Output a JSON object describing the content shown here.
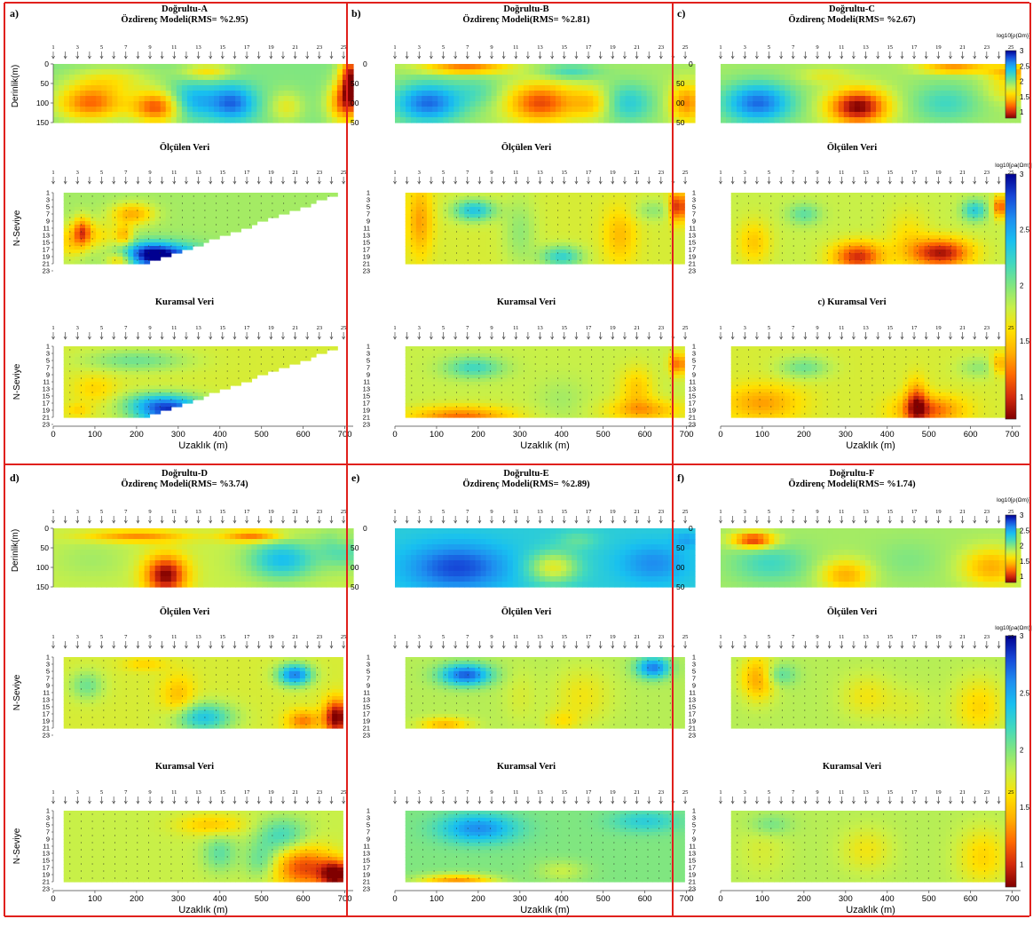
{
  "figure": {
    "frame_color": "#e0201c",
    "x_axis_label": "Uzaklık (m)",
    "x_ticks": [
      0,
      100,
      200,
      300,
      400,
      500,
      600,
      700
    ],
    "electrode_labels": [
      "1",
      "3",
      "5",
      "7",
      "9",
      "11",
      "13",
      "15",
      "17",
      "19",
      "21",
      "23",
      "25"
    ],
    "depth_axis_label": "Derinlik(m)",
    "depth_ticks": [
      0,
      50,
      100,
      150
    ],
    "n_axis_label": "N-Seviye",
    "n_ticks": [
      1,
      3,
      5,
      7,
      9,
      11,
      13,
      15,
      17,
      19,
      21,
      23
    ],
    "row_titles": {
      "model_prefix": "Özdirenç Modeli(RMS= ",
      "measured": "Ölçülen Veri",
      "calculated": "Kuramsal Veri"
    },
    "colorbar_model": {
      "label": "log10[ρ(Ωm)]",
      "ticks": [
        "3",
        "2.5",
        "2",
        "1.5",
        "1"
      ]
    },
    "colorbar_data": {
      "label": "log10[ρa(Ωm)]",
      "ticks": [
        "3",
        "2.5",
        "2",
        "1.5",
        "1"
      ]
    },
    "colormap": [
      "#800000",
      "#d42a0c",
      "#ff6a00",
      "#ffb000",
      "#ffe100",
      "#c8f048",
      "#80e680",
      "#40d8c0",
      "#18c0f0",
      "#1e8ef0",
      "#1648d8",
      "#000090"
    ]
  },
  "chart_data": [
    {
      "type": "heatmap",
      "panel": "a",
      "title": "Doğrultu-A",
      "rms": "%2.95",
      "model_title": "Özdirenç Modeli(RMS= %2.95)",
      "measured_title": "Ölçülen Veri",
      "calculated_title": "Kuramsal Veri",
      "data_shape": "triangle",
      "value_range": [
        0.8,
        3.0
      ]
    },
    {
      "type": "heatmap",
      "panel": "b",
      "title": "Doğrultu-B",
      "rms": "%2.81",
      "model_title": "Özdirenç Modeli(RMS= %2.81)",
      "measured_title": "Ölçülen Veri",
      "calculated_title": "Kuramsal Veri",
      "data_shape": "rect",
      "value_range": [
        0.8,
        3.0
      ]
    },
    {
      "type": "heatmap",
      "panel": "c",
      "title": "Doğrultu-C",
      "rms": "%2.67",
      "model_title": "Özdirenç Modeli(RMS= %2.67)",
      "measured_title": "Ölçülen Veri",
      "calculated_title": "c) Kuramsal Veri",
      "data_shape": "rect",
      "value_range": [
        0.8,
        3.0
      ]
    },
    {
      "type": "heatmap",
      "panel": "d",
      "title": "Doğrultu-D",
      "rms": "%3.74",
      "model_title": "Özdirenç Modeli(RMS= %3.74)",
      "measured_title": "Ölçülen Veri",
      "calculated_title": "Kuramsal Veri",
      "data_shape": "rect",
      "value_range": [
        0.8,
        3.0
      ]
    },
    {
      "type": "heatmap",
      "panel": "e",
      "title": "Doğrultu-E",
      "rms": "%2.89",
      "model_title": "Özdirenç Modeli(RMS= %2.89)",
      "measured_title": "Ölçülen Veri",
      "calculated_title": "Kuramsal Veri",
      "data_shape": "rect",
      "value_range": [
        0.8,
        3.0
      ]
    },
    {
      "type": "heatmap",
      "panel": "f",
      "title": "Doğrultu-F",
      "rms": "%1.74",
      "model_title": "Özdirenç Modeli(RMS= %1.74)",
      "measured_title": "Ölçülen Veri",
      "calculated_title": "Kuramsal Veri",
      "data_shape": "rect",
      "value_range": [
        0.8,
        3.0
      ]
    }
  ],
  "blobs": {
    "a": {
      "model": {
        "base": 2.0,
        "blobs": [
          [
            90,
            100,
            80,
            45,
            -0.8
          ],
          [
            250,
            110,
            60,
            40,
            -0.9
          ],
          [
            330,
            95,
            60,
            45,
            0.5
          ],
          [
            430,
            100,
            55,
            45,
            0.7
          ],
          [
            140,
            40,
            100,
            35,
            -0.3
          ],
          [
            720,
            40,
            30,
            60,
            -1.2
          ],
          [
            700,
            100,
            40,
            50,
            -0.8
          ],
          [
            560,
            110,
            40,
            40,
            -0.3
          ],
          [
            370,
            20,
            60,
            20,
            -0.4
          ]
        ]
      },
      "measured": {
        "base": 1.9,
        "blobs": [
          [
            290,
            20,
            80,
            4,
            0.9
          ],
          [
            230,
            18,
            60,
            3,
            0.8
          ],
          [
            100,
            13,
            60,
            4,
            -0.3
          ],
          [
            190,
            7,
            50,
            3,
            -0.5
          ],
          [
            40,
            15,
            30,
            5,
            -0.3
          ],
          [
            70,
            12,
            20,
            4,
            -0.6
          ],
          [
            170,
            13,
            20,
            3,
            -0.4
          ],
          [
            160,
            20,
            30,
            2,
            -0.4
          ]
        ]
      },
      "calculated": {
        "base": 1.75,
        "blobs": [
          [
            290,
            20,
            90,
            4,
            0.9
          ],
          [
            250,
            17,
            80,
            3,
            0.5
          ],
          [
            200,
            5,
            120,
            3,
            0.3
          ],
          [
            60,
            19,
            30,
            2,
            -0.2
          ],
          [
            100,
            13,
            50,
            4,
            -0.2
          ]
        ]
      }
    },
    "b": {
      "model": {
        "base": 1.9,
        "blobs": [
          [
            80,
            100,
            80,
            50,
            0.8
          ],
          [
            200,
            70,
            60,
            40,
            0.2
          ],
          [
            350,
            100,
            80,
            50,
            -0.8
          ],
          [
            470,
            100,
            50,
            40,
            -0.4
          ],
          [
            560,
            100,
            60,
            50,
            0.4
          ],
          [
            700,
            100,
            40,
            50,
            -0.6
          ],
          [
            170,
            10,
            100,
            15,
            -0.7
          ],
          [
            420,
            20,
            70,
            20,
            0.3
          ]
        ]
      },
      "measured": {
        "base": 1.75,
        "blobs": [
          [
            190,
            6,
            50,
            3,
            0.6
          ],
          [
            400,
            19,
            50,
            3,
            0.5
          ],
          [
            620,
            6,
            50,
            3,
            0.2
          ],
          [
            60,
            9,
            30,
            10,
            -0.4
          ],
          [
            680,
            5,
            20,
            4,
            -0.8
          ],
          [
            540,
            13,
            40,
            8,
            -0.3
          ],
          [
            300,
            12,
            40,
            10,
            0.2
          ]
        ]
      },
      "calculated": {
        "base": 1.8,
        "blobs": [
          [
            190,
            7,
            70,
            3,
            0.4
          ],
          [
            400,
            16,
            60,
            6,
            0.1
          ],
          [
            160,
            21,
            120,
            3,
            -0.6
          ],
          [
            600,
            19,
            90,
            3,
            -0.4
          ],
          [
            680,
            6,
            20,
            3,
            -0.6
          ],
          [
            580,
            13,
            40,
            6,
            -0.3
          ]
        ]
      }
    },
    "c": {
      "model": {
        "base": 1.9,
        "blobs": [
          [
            90,
            100,
            80,
            50,
            0.8
          ],
          [
            330,
            110,
            70,
            45,
            -1.1
          ],
          [
            250,
            30,
            60,
            20,
            -0.2
          ],
          [
            540,
            100,
            80,
            50,
            0.3
          ],
          [
            700,
            60,
            60,
            40,
            -0.3
          ],
          [
            560,
            10,
            80,
            15,
            -0.6
          ],
          [
            700,
            20,
            60,
            20,
            -0.4
          ]
        ]
      },
      "measured": {
        "base": 1.8,
        "blobs": [
          [
            200,
            7,
            40,
            3,
            0.3
          ],
          [
            330,
            19,
            60,
            4,
            -0.8
          ],
          [
            530,
            18,
            70,
            4,
            -0.9
          ],
          [
            610,
            6,
            30,
            3,
            0.5
          ],
          [
            670,
            5,
            15,
            3,
            -0.7
          ],
          [
            80,
            15,
            40,
            6,
            -0.3
          ],
          [
            450,
            14,
            50,
            8,
            -0.2
          ]
        ]
      },
      "calculated": {
        "base": 1.75,
        "blobs": [
          [
            200,
            7,
            60,
            3,
            0.3
          ],
          [
            100,
            17,
            90,
            5,
            -0.4
          ],
          [
            500,
            19,
            80,
            4,
            -0.6
          ],
          [
            620,
            7,
            50,
            3,
            0.2
          ],
          [
            670,
            6,
            20,
            3,
            -0.4
          ],
          [
            470,
            17,
            25,
            6,
            -0.6
          ]
        ]
      }
    },
    "d": {
      "model": {
        "base": 1.8,
        "blobs": [
          [
            270,
            120,
            50,
            50,
            -1.0
          ],
          [
            200,
            20,
            120,
            15,
            -0.5
          ],
          [
            480,
            20,
            70,
            15,
            -0.6
          ],
          [
            550,
            80,
            80,
            50,
            0.6
          ],
          [
            700,
            50,
            60,
            50,
            0.4
          ],
          [
            90,
            80,
            90,
            50,
            0.1
          ],
          [
            700,
            30,
            30,
            30,
            -0.2
          ]
        ]
      },
      "measured": {
        "base": 1.75,
        "blobs": [
          [
            580,
            6,
            40,
            3,
            0.9
          ],
          [
            360,
            18,
            70,
            4,
            0.6
          ],
          [
            680,
            18,
            30,
            5,
            -1.0
          ],
          [
            600,
            19,
            40,
            3,
            -0.5
          ],
          [
            80,
            9,
            40,
            4,
            0.3
          ],
          [
            300,
            12,
            40,
            6,
            -0.3
          ],
          [
            220,
            3,
            50,
            2,
            -0.2
          ]
        ]
      },
      "calculated": {
        "base": 1.8,
        "blobs": [
          [
            380,
            5,
            80,
            3,
            -0.3
          ],
          [
            550,
            8,
            60,
            5,
            0.4
          ],
          [
            600,
            17,
            70,
            6,
            -0.7
          ],
          [
            680,
            19,
            40,
            4,
            -1.0
          ],
          [
            500,
            15,
            40,
            5,
            0.3
          ],
          [
            400,
            13,
            40,
            5,
            0.3
          ],
          [
            150,
            15,
            80,
            8,
            0.0
          ]
        ]
      }
    },
    "e": {
      "model": {
        "base": 2.3,
        "blobs": [
          [
            150,
            100,
            120,
            60,
            0.5
          ],
          [
            380,
            100,
            60,
            40,
            -0.6
          ],
          [
            440,
            30,
            50,
            25,
            -0.2
          ],
          [
            620,
            90,
            80,
            50,
            0.3
          ],
          [
            700,
            30,
            30,
            20,
            0.2
          ]
        ]
      },
      "measured": {
        "base": 1.85,
        "blobs": [
          [
            170,
            6,
            60,
            3,
            0.9
          ],
          [
            620,
            4,
            40,
            3,
            0.8
          ],
          [
            450,
            12,
            70,
            8,
            -0.2
          ],
          [
            120,
            20,
            60,
            2,
            -0.4
          ],
          [
            400,
            19,
            40,
            3,
            -0.2
          ],
          [
            300,
            12,
            40,
            8,
            -0.1
          ]
        ]
      },
      "calculated": {
        "base": 2.0,
        "blobs": [
          [
            200,
            6,
            90,
            4,
            0.6
          ],
          [
            150,
            21,
            90,
            2,
            -0.7
          ],
          [
            600,
            4,
            80,
            3,
            0.3
          ],
          [
            450,
            13,
            80,
            5,
            0.0
          ],
          [
            400,
            18,
            60,
            3,
            -0.2
          ]
        ]
      }
    },
    "f": {
      "model": {
        "base": 1.9,
        "blobs": [
          [
            80,
            30,
            50,
            20,
            -0.9
          ],
          [
            300,
            120,
            60,
            40,
            -0.5
          ],
          [
            650,
            100,
            70,
            50,
            -0.5
          ],
          [
            120,
            90,
            90,
            50,
            0.3
          ],
          [
            450,
            80,
            80,
            50,
            0.1
          ]
        ]
      },
      "measured": {
        "base": 1.85,
        "blobs": [
          [
            90,
            7,
            40,
            6,
            -0.5
          ],
          [
            140,
            6,
            40,
            3,
            0.3
          ],
          [
            620,
            15,
            60,
            8,
            -0.3
          ],
          [
            350,
            12,
            60,
            6,
            -0.2
          ],
          [
            450,
            15,
            60,
            6,
            -0.1
          ]
        ]
      },
      "calculated": {
        "base": 1.85,
        "blobs": [
          [
            120,
            5,
            50,
            3,
            0.2
          ],
          [
            100,
            12,
            60,
            8,
            -0.1
          ],
          [
            630,
            14,
            60,
            8,
            -0.3
          ],
          [
            350,
            12,
            60,
            6,
            -0.2
          ]
        ]
      }
    }
  }
}
